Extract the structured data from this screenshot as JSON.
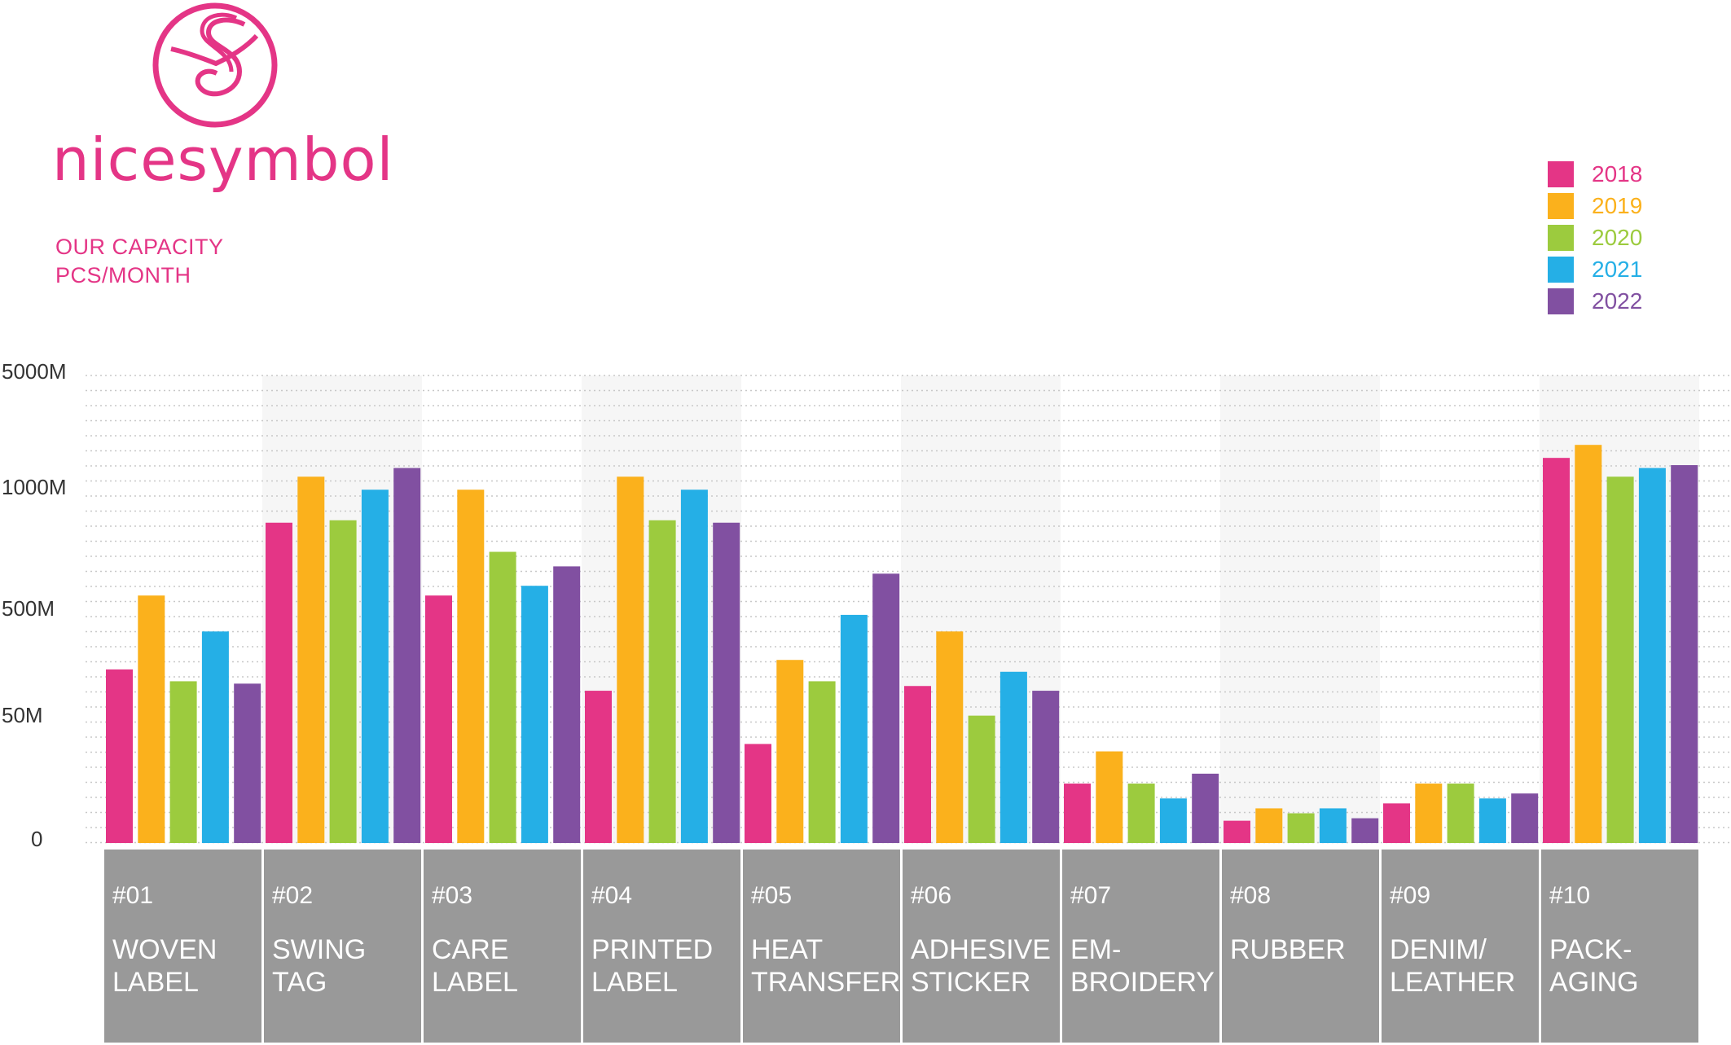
{
  "brand": {
    "name": "nicesymbol",
    "subtitle_line1": "OUR CAPACITY",
    "subtitle_line2": "PCS/MONTH"
  },
  "colors": {
    "accent": "#e43586",
    "tile": "#999999"
  },
  "legend": [
    {
      "label": "2018",
      "color": "#e43586"
    },
    {
      "label": "2019",
      "color": "#fbb11c"
    },
    {
      "label": "2020",
      "color": "#9ccb3e"
    },
    {
      "label": "2021",
      "color": "#25afe6"
    },
    {
      "label": "2022",
      "color": "#8150a1"
    }
  ],
  "categories": [
    {
      "num": "#01",
      "name": "WOVEN\nLABEL"
    },
    {
      "num": "#02",
      "name": "SWING\nTAG"
    },
    {
      "num": "#03",
      "name": "CARE\nLABEL"
    },
    {
      "num": "#04",
      "name": "PRINTED\nLABEL"
    },
    {
      "num": "#05",
      "name": "HEAT\nTRANSFER"
    },
    {
      "num": "#06",
      "name": "ADHESIVE\nSTICKER"
    },
    {
      "num": "#07",
      "name": "EM-\nBROIDERY"
    },
    {
      "num": "#08",
      "name": "RUBBER"
    },
    {
      "num": "#09",
      "name": "DENIM/\nLEATHER"
    },
    {
      "num": "#10",
      "name": "PACK-\nAGING"
    }
  ],
  "chart_data": {
    "type": "bar",
    "ylabel": "",
    "xlabel": "",
    "yticks": [
      "0",
      "50M",
      "500M",
      "1000M",
      "5000M"
    ],
    "y_tick_values": [
      0,
      50,
      500,
      1000,
      5000
    ],
    "y_scale": "piecewise",
    "categories": [
      "#01",
      "#02",
      "#03",
      "#04",
      "#05",
      "#06",
      "#07",
      "#08",
      "#09",
      "#10"
    ],
    "series": [
      {
        "name": "2018",
        "values": [
          260,
          870,
          570,
          170,
          40,
          190,
          24,
          9,
          16,
          2150
        ]
      },
      {
        "name": "2019",
        "values": [
          570,
          1500,
          1050,
          1500,
          300,
          420,
          37,
          14,
          24,
          2600
        ]
      },
      {
        "name": "2020",
        "values": [
          210,
          880,
          750,
          880,
          210,
          65,
          24,
          12,
          24,
          1500
        ]
      },
      {
        "name": "2021",
        "values": [
          420,
          1050,
          610,
          1050,
          490,
          250,
          18,
          14,
          18,
          1800
        ]
      },
      {
        "name": "2022",
        "values": [
          200,
          1800,
          690,
          870,
          660,
          170,
          28,
          10,
          20,
          1900
        ]
      }
    ]
  }
}
